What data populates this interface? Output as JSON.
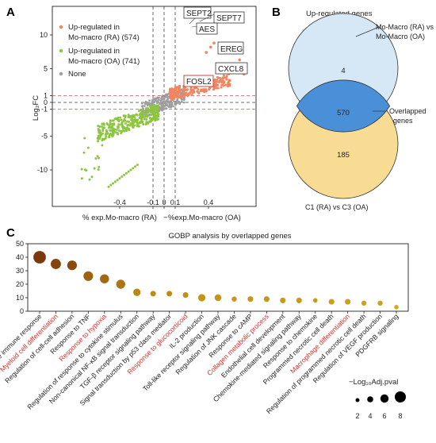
{
  "panels": {
    "a": {
      "letter": "A",
      "ylabel": "Log₂FC",
      "xlabel_left": "% exp.Mo-macro (RA)",
      "xlabel_right": "%exp.Mo-macro (OA)",
      "x_ticks": [
        "-0.4",
        "-0.1",
        "0",
        "0.1",
        "0.4"
      ],
      "y_ticks": [
        "10",
        "5",
        "1",
        "0",
        "-1",
        "-5",
        "-10"
      ],
      "legend": [
        {
          "line1": "Up-regulated in",
          "line2": "Mo-macro (RA) (574)",
          "color": "#f4845f"
        },
        {
          "line1": "Up-regulated in",
          "line2": "Mo-macro (OA) (741)",
          "color": "#8cc63f"
        },
        {
          "line1": "None",
          "line2": "",
          "color": "#9e9e9e"
        }
      ],
      "genes": [
        "SEPT2",
        "SEPT7",
        "AES",
        "EREG",
        "CXCL8",
        "FOSL2"
      ],
      "colors": {
        "up_ra": "#f4845f",
        "up_oa": "#8cc63f",
        "none": "#9e9e9e",
        "fosl2_box": "#c0392b"
      }
    },
    "b": {
      "letter": "B",
      "title": "Up-regulated genes",
      "top_label_line1": "Mo-Macro (RA) vs",
      "top_label_line2": "Mo-Macro (OA)",
      "overlap_label_line1": "Overlapped",
      "overlap_label_line2": "genes",
      "bottom_label": "C1 (RA) vs C3 (OA)",
      "count_top": "4",
      "count_overlap": "570",
      "count_bottom": "185",
      "colors": {
        "top": "#d6e8f5",
        "overlap": "#4a90d9",
        "bottom": "#f9dc94"
      }
    },
    "c": {
      "letter": "C",
      "title": "GOBP analysis by overlapped genes",
      "size_legend_title": "−Log₁₀Adj.pval",
      "size_legend_values": [
        "2",
        "4",
        "6",
        "8"
      ],
      "highlight_color": "#d0312d"
    }
  },
  "chart_data": [
    {
      "type": "scatter",
      "panel": "A",
      "xlabel": "% exp.Mo-macro (RA)−%exp.Mo-macro (OA)",
      "ylabel": "Log2FC",
      "x_ticks": [
        -0.4,
        -0.1,
        0,
        0.1,
        0.4
      ],
      "y_ticks": [
        -10,
        -5,
        -1,
        0,
        1,
        5,
        10
      ],
      "series": [
        {
          "name": "Up-regulated in Mo-macro (RA) (574)",
          "color": "#f4845f"
        },
        {
          "name": "Up-regulated in Mo-macro (OA) (741)",
          "color": "#8cc63f"
        },
        {
          "name": "None",
          "color": "#9e9e9e"
        }
      ],
      "labeled_points": [
        {
          "label": "SEPT2",
          "x": 0.42,
          "y": 8.2
        },
        {
          "label": "SEPT7",
          "x": 0.45,
          "y": 8.8
        },
        {
          "label": "AES",
          "x": 0.38,
          "y": 7.4
        },
        {
          "label": "EREG",
          "x": 0.68,
          "y": 6.3
        },
        {
          "label": "CXCL8",
          "x": 0.72,
          "y": 4.2
        },
        {
          "label": "FOSL2",
          "x": 0.46,
          "y": 2.5
        }
      ]
    },
    {
      "type": "venn",
      "panel": "B",
      "title": "Up-regulated genes",
      "sets": [
        {
          "name": "Mo-Macro (RA) vs Mo-Macro (OA)",
          "only": 4
        },
        {
          "name": "C1 (RA) vs C3 (OA)",
          "only": 185
        }
      ],
      "overlap": 570
    },
    {
      "type": "scatter",
      "panel": "C",
      "title": "GOBP analysis by overlapped genes",
      "ylim": [
        0,
        50
      ],
      "y_ticks": [
        0,
        10,
        20,
        30,
        40,
        50
      ],
      "size_legend": [
        2,
        4,
        6,
        8
      ],
      "categories": [
        "Regulation of innate immune response",
        "Myeloid cell differentiation",
        "Regulation of cell-cell adhesion",
        "Response to TNF",
        "Response to hypoxia",
        "Regulation of response to cytokine stimulus",
        "Non-canonical NF-κB signal transduction",
        "TGF-β receptor signaling pathway",
        "Signal transduction by p53 class mediator",
        "Response to glucocorticoid",
        "IL-2 production",
        "Toll-like receptor signaling pathway",
        "Regulation of JNK cascade",
        "Response to cAMP",
        "Collagen metabolic process",
        "Endothelial cell development",
        "Chemokine-mediated signaling pathway",
        "Response to chemokine",
        "Programmed necrotic cell death",
        "Macrophage differentiation",
        "Regulation of programmed necrotic cell death",
        "Regulation of VEGF production",
        "PDGFRB signaling"
      ],
      "highlighted": [
        1,
        4,
        9,
        14,
        19
      ],
      "values": [
        40,
        35,
        34,
        26,
        24,
        20,
        14,
        13,
        13,
        12,
        10,
        10,
        9,
        9,
        9,
        8,
        8,
        8,
        7,
        7,
        6,
        6,
        3
      ],
      "neglog10_padj": [
        9,
        7,
        6.5,
        6.5,
        6,
        6,
        4.5,
        3,
        3,
        3,
        4.5,
        4,
        2.5,
        3,
        3,
        3,
        3,
        2,
        3,
        3,
        2.5,
        2.5,
        2
      ]
    }
  ]
}
